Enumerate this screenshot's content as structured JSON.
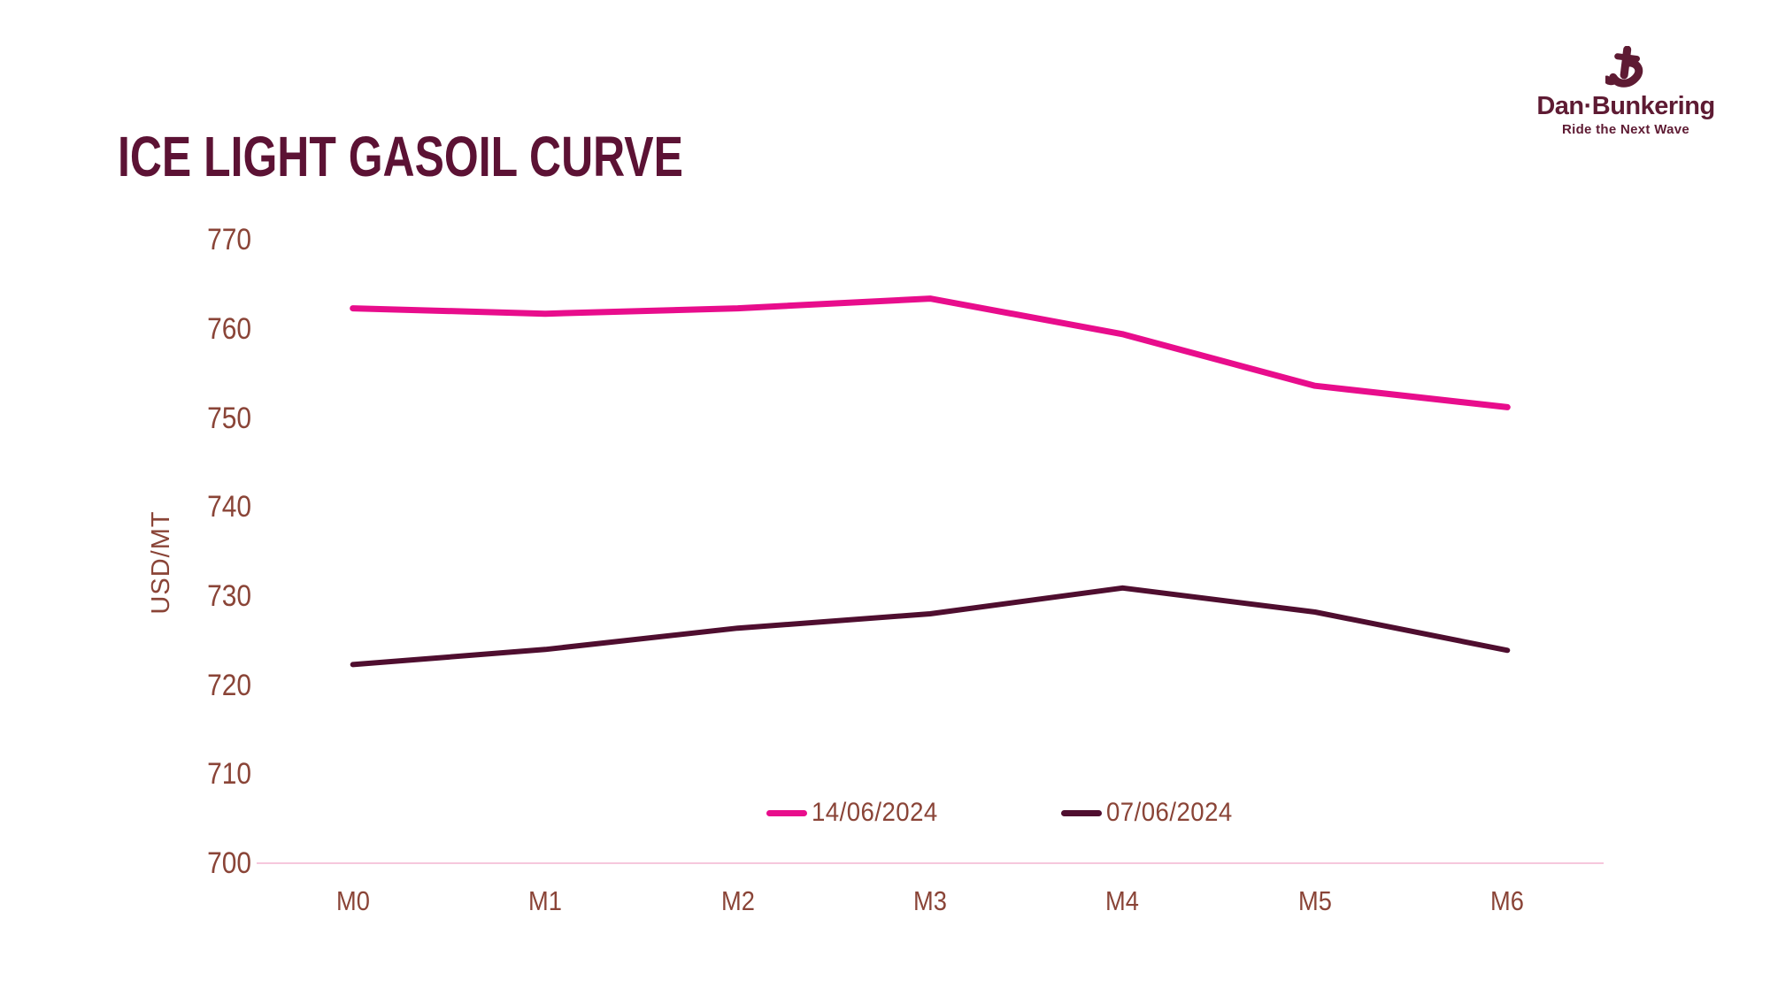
{
  "header": {
    "title": "ICE LIGHT GASOIL CURVE"
  },
  "logo": {
    "brand": "Dan·Bunkering",
    "tagline": "Ride the Next Wave"
  },
  "colors": {
    "title": "#5C1234",
    "brand": "#5E1B33",
    "axis_text": "#8A4437",
    "axis_line": "#F6C7DC",
    "series_latest": "#E80D8C",
    "series_previous": "#4F0E2F",
    "background": "#FFFFFF"
  },
  "chart_data": {
    "type": "line",
    "title": "ICE LIGHT GASOIL CURVE",
    "xlabel": "",
    "ylabel": "USD/MT",
    "categories": [
      "M0",
      "M1",
      "M2",
      "M3",
      "M4",
      "M5",
      "M6"
    ],
    "series": [
      {
        "name": "14/06/2024",
        "color": "#E80D8C",
        "values": [
          762.3,
          761.7,
          762.3,
          763.4,
          759.4,
          753.6,
          751.2
        ]
      },
      {
        "name": "07/06/2024",
        "color": "#4F0E2F",
        "values": [
          722.3,
          724.0,
          726.4,
          728.0,
          730.9,
          728.2,
          723.9
        ]
      }
    ],
    "ylim": [
      700,
      770
    ],
    "yticks": [
      700,
      710,
      720,
      730,
      740,
      750,
      760,
      770
    ],
    "grid": false,
    "legend_position": "bottom-center"
  }
}
